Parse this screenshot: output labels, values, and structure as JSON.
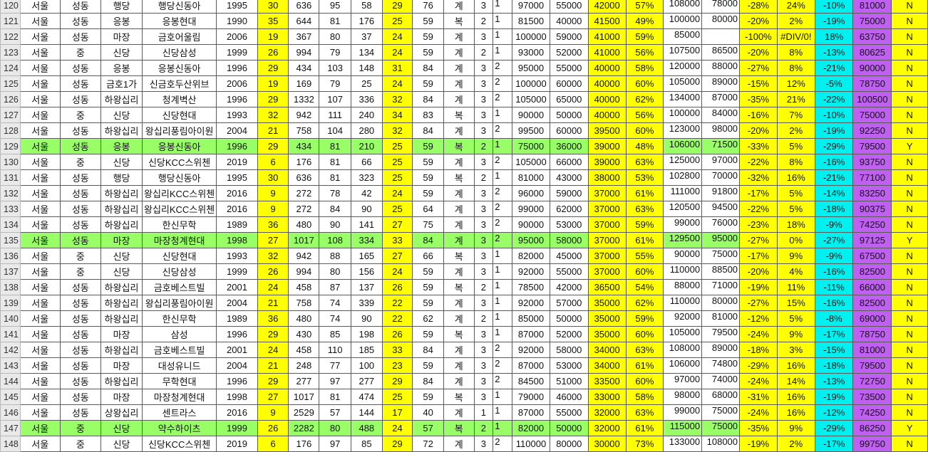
{
  "colors": {
    "highlight_yellow": "#ffff00",
    "cyan": "#00f0f0",
    "purple": "#c060f0",
    "green_row": "#99ff66",
    "red_text": "#ff4060"
  },
  "rows": [
    {
      "style": "normal",
      "cells": [
        "120",
        "서울",
        "성동",
        "행당",
        "행당신동아",
        "1995",
        "30",
        "636",
        "95",
        "58",
        "29",
        "76",
        "계",
        "3",
        "1",
        "97000",
        "55000",
        "42000",
        "57%",
        "108000",
        "78000",
        "-28%",
        "24%",
        "-10%",
        "81000",
        "N"
      ]
    },
    {
      "style": "normal",
      "cells": [
        "121",
        "서울",
        "성동",
        "응봉",
        "응봉현대",
        "1990",
        "35",
        "644",
        "81",
        "176",
        "25",
        "59",
        "복",
        "2",
        "1",
        "81500",
        "40000",
        "41500",
        "49%",
        "100000",
        "80000",
        "-20%",
        "2%",
        "-19%",
        "75000",
        "N"
      ]
    },
    {
      "style": "normal",
      "cells": [
        "122",
        "서울",
        "성동",
        "마장",
        "금호어울림",
        "2006",
        "19",
        "367",
        "80",
        "37",
        "24",
        "59",
        "계",
        "3",
        "1",
        "100000",
        "59000",
        "41000",
        "59%",
        "85000",
        "",
        "-100%",
        "#DIV/0!",
        "18%",
        "63750",
        "N"
      ]
    },
    {
      "style": "normal",
      "cells": [
        "123",
        "서울",
        "중",
        "신당",
        "신당삼성",
        "1999",
        "26",
        "994",
        "79",
        "134",
        "24",
        "59",
        "계",
        "2",
        "1",
        "93000",
        "52000",
        "41000",
        "56%",
        "107500",
        "86500",
        "-20%",
        "8%",
        "-13%",
        "80625",
        "N"
      ]
    },
    {
      "style": "red",
      "cells": [
        "124",
        "서울",
        "성동",
        "응봉",
        "응봉신동아",
        "1996",
        "29",
        "434",
        "103",
        "148",
        "31",
        "84",
        "계",
        "3",
        "2",
        "95000",
        "55000",
        "40000",
        "58%",
        "120000",
        "88000",
        "-27%",
        "8%",
        "-21%",
        "90000",
        "N"
      ]
    },
    {
      "style": "normal",
      "cells": [
        "125",
        "서울",
        "성동",
        "금호1가",
        "신금호두산위브",
        "2006",
        "19",
        "169",
        "79",
        "25",
        "24",
        "59",
        "계",
        "3",
        "2",
        "100000",
        "60000",
        "40000",
        "60%",
        "105000",
        "89000",
        "-15%",
        "12%",
        "-5%",
        "78750",
        "N"
      ]
    },
    {
      "style": "red",
      "cells": [
        "126",
        "서울",
        "성동",
        "하왕십리",
        "청계벽산",
        "1996",
        "29",
        "1332",
        "107",
        "336",
        "32",
        "84",
        "계",
        "3",
        "2",
        "105000",
        "65000",
        "40000",
        "62%",
        "134000",
        "87000",
        "-35%",
        "21%",
        "-22%",
        "100500",
        "N"
      ]
    },
    {
      "style": "normal",
      "cells": [
        "127",
        "서울",
        "중",
        "신당",
        "신당현대",
        "1993",
        "32",
        "942",
        "111",
        "240",
        "34",
        "83",
        "복",
        "3",
        "1",
        "90000",
        "50000",
        "40000",
        "56%",
        "100000",
        "84000",
        "-16%",
        "7%",
        "-10%",
        "75000",
        "N"
      ]
    },
    {
      "style": "red",
      "cells": [
        "128",
        "서울",
        "성동",
        "하왕십리",
        "왕십리풍림아이원",
        "2004",
        "21",
        "758",
        "104",
        "280",
        "32",
        "84",
        "계",
        "3",
        "2",
        "99500",
        "60000",
        "39500",
        "60%",
        "123000",
        "98000",
        "-20%",
        "2%",
        "-19%",
        "92250",
        "N"
      ]
    },
    {
      "style": "green",
      "cells": [
        "129",
        "서울",
        "성동",
        "응봉",
        "응봉신동아",
        "1996",
        "29",
        "434",
        "81",
        "210",
        "25",
        "59",
        "복",
        "2",
        "1",
        "75000",
        "36000",
        "39000",
        "48%",
        "106000",
        "71500",
        "-33%",
        "5%",
        "-29%",
        "79500",
        "Y"
      ]
    },
    {
      "style": "normal",
      "cells": [
        "130",
        "서울",
        "중",
        "신당",
        "신당KCC스위첸",
        "2019",
        "6",
        "176",
        "81",
        "66",
        "25",
        "59",
        "계",
        "3",
        "2",
        "105000",
        "66000",
        "39000",
        "63%",
        "125000",
        "97000",
        "-22%",
        "8%",
        "-16%",
        "93750",
        "N"
      ]
    },
    {
      "style": "red",
      "cells": [
        "131",
        "서울",
        "성동",
        "행당",
        "행당신동아",
        "1995",
        "30",
        "636",
        "81",
        "323",
        "25",
        "59",
        "복",
        "2",
        "1",
        "81000",
        "43000",
        "38000",
        "53%",
        "102800",
        "70000",
        "-32%",
        "16%",
        "-21%",
        "77100",
        "N"
      ]
    },
    {
      "style": "normal",
      "cells": [
        "132",
        "서울",
        "성동",
        "하왕십리",
        "왕십리KCC스위첸",
        "2016",
        "9",
        "272",
        "78",
        "42",
        "24",
        "59",
        "계",
        "3",
        "2",
        "96000",
        "59000",
        "37000",
        "61%",
        "111000",
        "91800",
        "-17%",
        "5%",
        "-14%",
        "83250",
        "N"
      ]
    },
    {
      "style": "normal",
      "cells": [
        "133",
        "서울",
        "성동",
        "하왕십리",
        "왕십리KCC스위첸",
        "2016",
        "9",
        "272",
        "84",
        "90",
        "25",
        "64",
        "계",
        "3",
        "2",
        "99000",
        "62000",
        "37000",
        "63%",
        "120500",
        "94500",
        "-22%",
        "5%",
        "-18%",
        "90375",
        "N"
      ]
    },
    {
      "style": "normal",
      "cells": [
        "134",
        "서울",
        "성동",
        "하왕십리",
        "한신무학",
        "1989",
        "36",
        "480",
        "90",
        "141",
        "27",
        "75",
        "계",
        "3",
        "2",
        "90000",
        "53000",
        "37000",
        "59%",
        "99000",
        "76000",
        "-23%",
        "18%",
        "-9%",
        "74250",
        "N"
      ]
    },
    {
      "style": "green",
      "cells": [
        "135",
        "서울",
        "성동",
        "마장",
        "마장청계현대",
        "1998",
        "27",
        "1017",
        "108",
        "334",
        "33",
        "84",
        "계",
        "3",
        "2",
        "95000",
        "58000",
        "37000",
        "61%",
        "129500",
        "95000",
        "-27%",
        "0%",
        "-27%",
        "97125",
        "Y"
      ]
    },
    {
      "style": "normal",
      "cells": [
        "136",
        "서울",
        "중",
        "신당",
        "신당현대",
        "1993",
        "32",
        "942",
        "88",
        "165",
        "27",
        "66",
        "복",
        "3",
        "1",
        "82000",
        "45000",
        "37000",
        "55%",
        "90000",
        "75000",
        "-17%",
        "9%",
        "-9%",
        "67500",
        "N"
      ]
    },
    {
      "style": "normal",
      "cells": [
        "137",
        "서울",
        "중",
        "신당",
        "신당삼성",
        "1999",
        "26",
        "994",
        "80",
        "156",
        "24",
        "59",
        "계",
        "3",
        "1",
        "92000",
        "55000",
        "37000",
        "60%",
        "110000",
        "88500",
        "-20%",
        "4%",
        "-16%",
        "82500",
        "N"
      ]
    },
    {
      "style": "normal",
      "cells": [
        "138",
        "서울",
        "성동",
        "하왕십리",
        "금호베스트빌",
        "2001",
        "24",
        "458",
        "87",
        "137",
        "26",
        "59",
        "복",
        "2",
        "1",
        "78500",
        "42000",
        "36500",
        "54%",
        "88000",
        "71000",
        "-19%",
        "11%",
        "-11%",
        "66000",
        "N"
      ]
    },
    {
      "style": "normal",
      "cells": [
        "139",
        "서울",
        "성동",
        "하왕십리",
        "왕십리풍림아이원",
        "2004",
        "21",
        "758",
        "74",
        "339",
        "22",
        "59",
        "계",
        "3",
        "1",
        "92000",
        "57000",
        "35000",
        "62%",
        "110000",
        "80000",
        "-27%",
        "15%",
        "-16%",
        "82500",
        "N"
      ]
    },
    {
      "style": "normal",
      "cells": [
        "140",
        "서울",
        "성동",
        "하왕십리",
        "한신무학",
        "1989",
        "36",
        "480",
        "74",
        "90",
        "22",
        "62",
        "계",
        "2",
        "1",
        "85000",
        "50000",
        "35000",
        "59%",
        "92000",
        "81000",
        "-12%",
        "5%",
        "-8%",
        "69000",
        "N"
      ]
    },
    {
      "style": "normal",
      "cells": [
        "141",
        "서울",
        "성동",
        "마장",
        "삼성",
        "1996",
        "29",
        "430",
        "85",
        "198",
        "26",
        "59",
        "복",
        "3",
        "1",
        "87000",
        "52000",
        "35000",
        "60%",
        "105000",
        "79500",
        "-24%",
        "9%",
        "-17%",
        "78750",
        "N"
      ]
    },
    {
      "style": "normal",
      "cells": [
        "142",
        "서울",
        "성동",
        "하왕십리",
        "금호베스트빌",
        "2001",
        "24",
        "458",
        "110",
        "185",
        "33",
        "84",
        "계",
        "3",
        "2",
        "92000",
        "58000",
        "34000",
        "63%",
        "108000",
        "89000",
        "-18%",
        "3%",
        "-15%",
        "81000",
        "N"
      ]
    },
    {
      "style": "normal",
      "cells": [
        "143",
        "서울",
        "성동",
        "마장",
        "대성유니드",
        "2004",
        "21",
        "248",
        "77",
        "100",
        "23",
        "59",
        "계",
        "3",
        "2",
        "87000",
        "53000",
        "34000",
        "61%",
        "106000",
        "74800",
        "-29%",
        "16%",
        "-18%",
        "79500",
        "N"
      ]
    },
    {
      "style": "normal",
      "cells": [
        "144",
        "서울",
        "성동",
        "하왕십리",
        "무학현대",
        "1996",
        "29",
        "277",
        "97",
        "277",
        "29",
        "84",
        "계",
        "3",
        "2",
        "84500",
        "51000",
        "33500",
        "60%",
        "97000",
        "74000",
        "-24%",
        "14%",
        "-13%",
        "72750",
        "N"
      ]
    },
    {
      "style": "red",
      "cells": [
        "145",
        "서울",
        "성동",
        "마장",
        "마장청계현대",
        "1998",
        "27",
        "1017",
        "81",
        "474",
        "25",
        "59",
        "복",
        "3",
        "1",
        "79000",
        "46000",
        "33000",
        "58%",
        "98000",
        "68000",
        "-31%",
        "16%",
        "-19%",
        "73500",
        "N"
      ]
    },
    {
      "style": "normal",
      "cells": [
        "146",
        "서울",
        "성동",
        "상왕십리",
        "센트라스",
        "2016",
        "9",
        "2529",
        "57",
        "144",
        "17",
        "40",
        "계",
        "1",
        "1",
        "87000",
        "55000",
        "32000",
        "63%",
        "99000",
        "75000",
        "-24%",
        "16%",
        "-12%",
        "74250",
        "N"
      ]
    },
    {
      "style": "green",
      "cells": [
        "147",
        "서울",
        "중",
        "신당",
        "약수하이츠",
        "1999",
        "26",
        "2282",
        "80",
        "488",
        "24",
        "57",
        "복",
        "2",
        "1",
        "82000",
        "50000",
        "32000",
        "61%",
        "115000",
        "75000",
        "-35%",
        "9%",
        "-29%",
        "86250",
        "Y"
      ]
    },
    {
      "style": "normal",
      "cells": [
        "148",
        "서울",
        "중",
        "신당",
        "신당KCC스위첸",
        "2019",
        "6",
        "176",
        "97",
        "85",
        "29",
        "72",
        "계",
        "3",
        "2",
        "110000",
        "80000",
        "30000",
        "73%",
        "133000",
        "108000",
        "-19%",
        "2%",
        "-17%",
        "99750",
        "N"
      ]
    }
  ]
}
